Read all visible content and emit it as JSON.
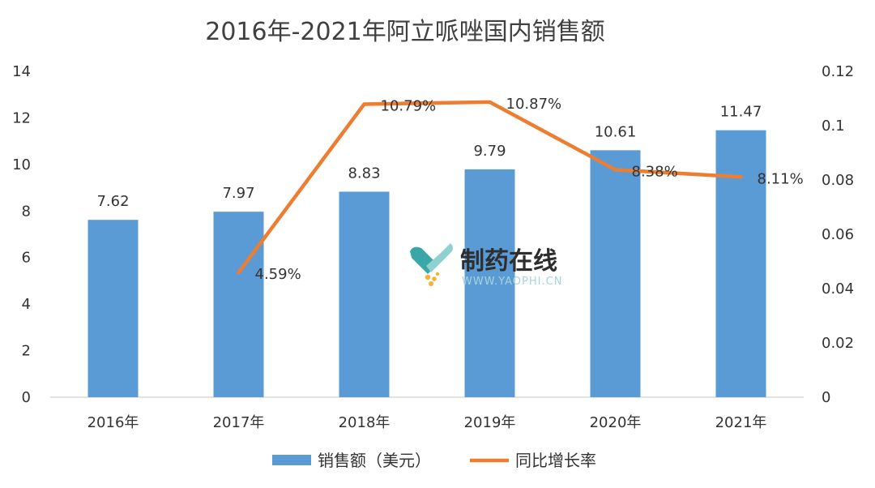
{
  "chart_data": {
    "type": "bar",
    "title": "2016年-2021年阿立哌唑国内销售额",
    "categories": [
      "2016年",
      "2017年",
      "2018年",
      "2019年",
      "2020年",
      "2021年"
    ],
    "series": [
      {
        "name": "销售额（美元）",
        "type": "bar",
        "axis": "left",
        "color": "#5b9bd5",
        "values": [
          7.62,
          7.97,
          8.83,
          9.79,
          10.61,
          11.47
        ],
        "labels": [
          "7.62",
          "7.97",
          "8.83",
          "9.79",
          "10.61",
          "11.47"
        ]
      },
      {
        "name": "同比增长率",
        "type": "line",
        "axis": "right",
        "color": "#ed7d31",
        "values": [
          null,
          0.0459,
          0.1079,
          0.1087,
          0.0838,
          0.0811
        ],
        "labels": [
          "",
          "4.59%",
          "10.79%",
          "10.87%",
          "8.38%",
          "8.11%"
        ]
      }
    ],
    "y_left": {
      "min": 0,
      "max": 14,
      "ticks": [
        "0",
        "2",
        "4",
        "6",
        "8",
        "10",
        "12",
        "14"
      ]
    },
    "y_right": {
      "min": 0,
      "max": 0.12,
      "ticks": [
        "0",
        "0.02",
        "0.04",
        "0.06",
        "0.08",
        "0.1",
        "0.12"
      ]
    },
    "grid": false,
    "legend": "bottom"
  },
  "watermark": {
    "text": "制药在线",
    "url": "WWW.YAOPHI.CN",
    "icon": "capsule-logo-icon"
  }
}
